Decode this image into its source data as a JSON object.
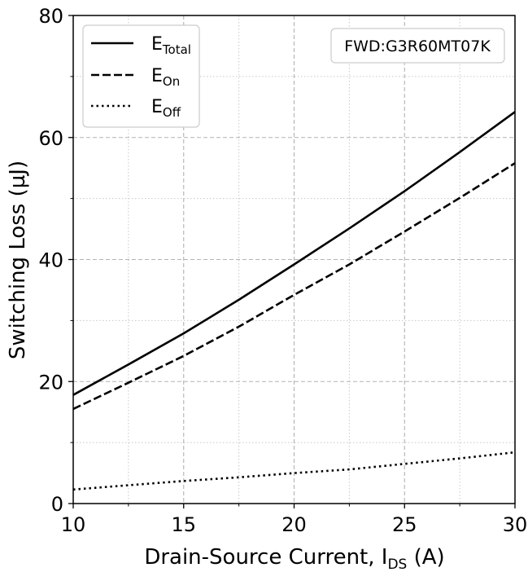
{
  "chart_data": {
    "type": "line",
    "xlabel": "Drain-Source Current, I",
    "xlabel_sub": "DS",
    "xlabel_unit": " (A)",
    "ylabel": "Switching Loss (µJ)",
    "xlim": [
      10,
      30
    ],
    "ylim": [
      0,
      80
    ],
    "x_ticks": [
      10,
      15,
      20,
      25,
      30
    ],
    "y_ticks": [
      0,
      20,
      40,
      60,
      80
    ],
    "grid": true,
    "legend_position": "top-left",
    "annotation": "FWD:G3R60MT07K",
    "series": [
      {
        "name": "E",
        "name_sub": "Total",
        "style": "solid",
        "x": [
          10,
          12.5,
          15,
          17.5,
          20,
          22.5,
          25,
          27.5,
          30
        ],
        "y": [
          17.8,
          22.8,
          27.9,
          33.4,
          39.2,
          45.1,
          51.2,
          57.6,
          64.2
        ]
      },
      {
        "name": "E",
        "name_sub": "On",
        "style": "dashed",
        "x": [
          10,
          12.5,
          15,
          17.5,
          20,
          22.5,
          25,
          27.5,
          30
        ],
        "y": [
          15.5,
          19.8,
          24.2,
          29.0,
          34.2,
          39.2,
          44.6,
          50.1,
          55.8
        ]
      },
      {
        "name": "E",
        "name_sub": "Off",
        "style": "dotted",
        "x": [
          10,
          12.5,
          15,
          17.5,
          20,
          22.5,
          25,
          27.5,
          30
        ],
        "y": [
          2.3,
          3.0,
          3.7,
          4.3,
          5.0,
          5.6,
          6.5,
          7.4,
          8.4
        ]
      }
    ]
  }
}
